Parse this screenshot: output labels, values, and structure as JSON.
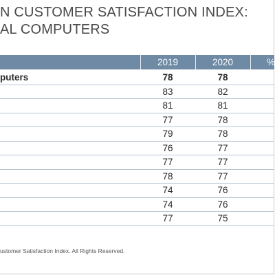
{
  "title": {
    "line1": "N CUSTOMER SATISFACTION INDEX:",
    "line2": "AL COMPUTERS"
  },
  "table": {
    "headers": [
      "2019",
      "2020",
      "%"
    ],
    "rows": [
      {
        "label": "puters",
        "y2019": "78",
        "y2020": "78"
      },
      {
        "label": "",
        "y2019": "83",
        "y2020": "82"
      },
      {
        "label": "",
        "y2019": "81",
        "y2020": "81"
      },
      {
        "label": "",
        "y2019": "77",
        "y2020": "78"
      },
      {
        "label": "",
        "y2019": "79",
        "y2020": "78"
      },
      {
        "label": "",
        "y2019": "76",
        "y2020": "77"
      },
      {
        "label": "",
        "y2019": "77",
        "y2020": "77"
      },
      {
        "label": "",
        "y2019": "78",
        "y2020": "77"
      },
      {
        "label": "",
        "y2019": "74",
        "y2020": "76"
      },
      {
        "label": "",
        "y2019": "74",
        "y2020": "76"
      },
      {
        "label": "",
        "y2019": "77",
        "y2020": "75"
      }
    ]
  },
  "footer": "ustomer Satisfaction Index. All Rights Reserved.",
  "colors": {
    "header_bg": "#6e8aa4",
    "row_border": "#b5c3d1"
  }
}
